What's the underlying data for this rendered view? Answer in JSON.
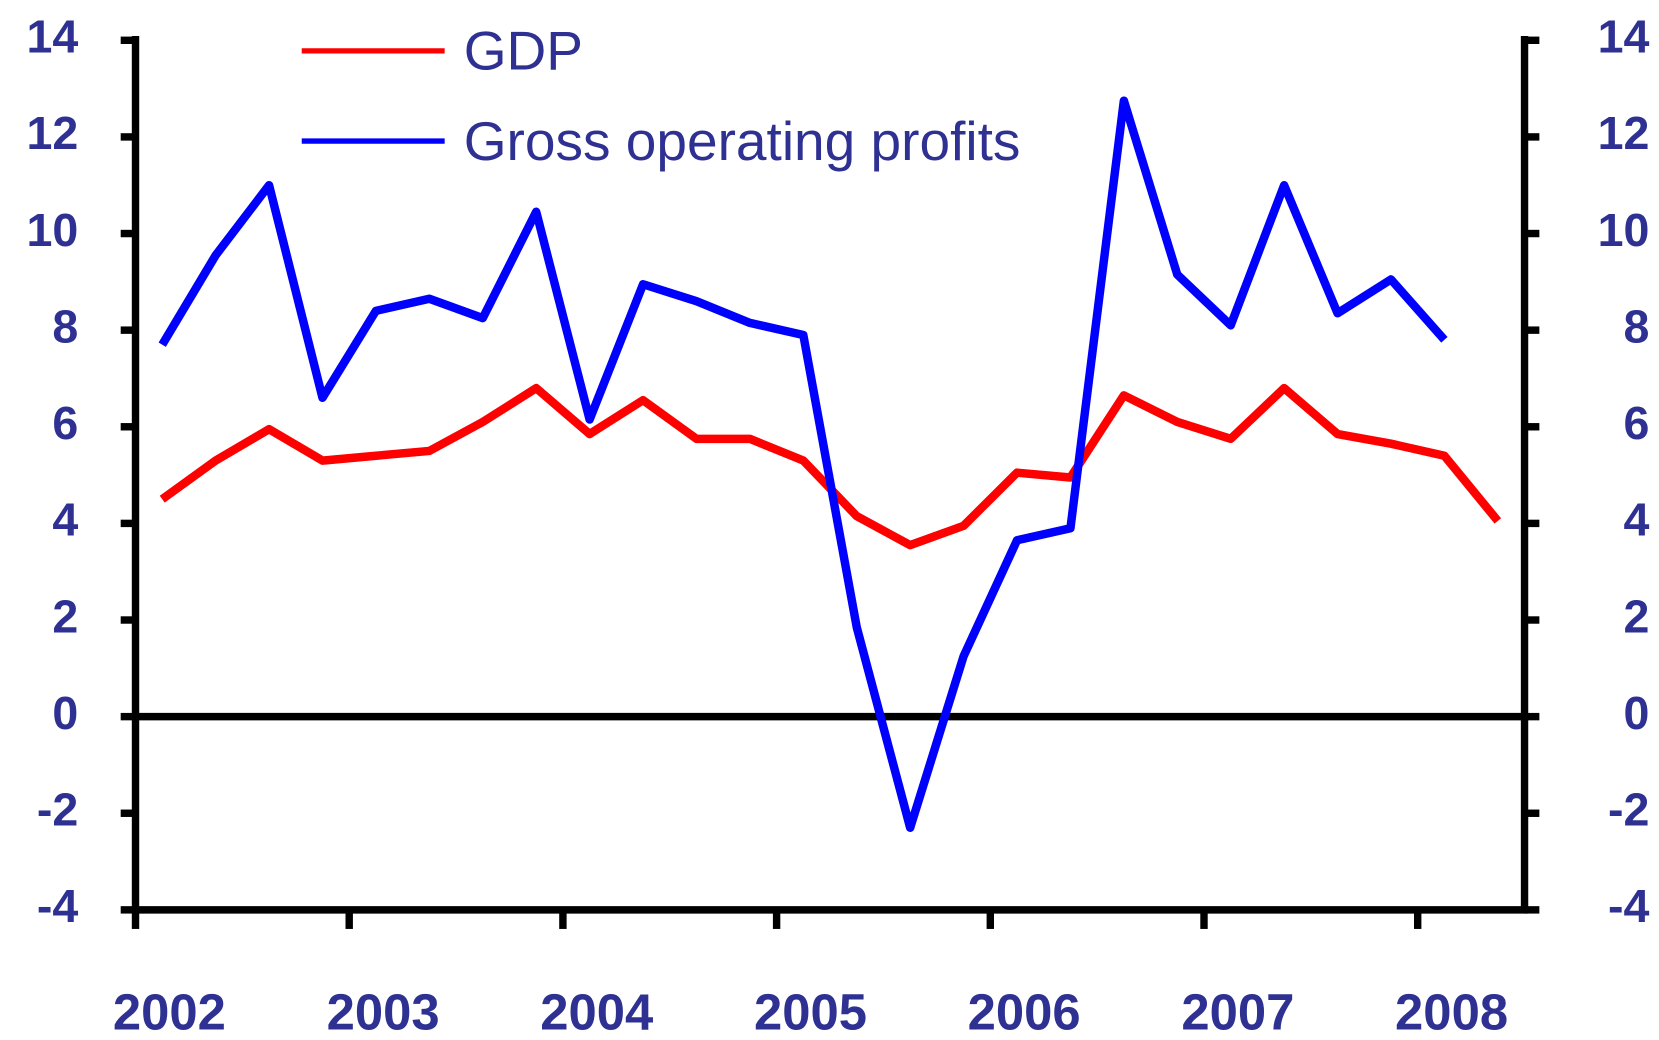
{
  "chart_data": {
    "type": "line",
    "x": [
      2002.125,
      2002.375,
      2002.625,
      2002.875,
      2003.125,
      2003.375,
      2003.625,
      2003.875,
      2004.125,
      2004.375,
      2004.625,
      2004.875,
      2005.125,
      2005.375,
      2005.625,
      2005.875,
      2006.125,
      2006.375,
      2006.625,
      2006.875,
      2007.125,
      2007.375,
      2007.625,
      2007.875,
      2008.125,
      2008.375
    ],
    "series": [
      {
        "name": "GDP",
        "color": "#ff0000",
        "values": [
          4.5,
          5.3,
          5.95,
          5.3,
          5.4,
          5.5,
          6.1,
          6.8,
          5.85,
          6.55,
          5.75,
          5.75,
          5.3,
          4.15,
          3.55,
          3.95,
          5.05,
          4.95,
          6.65,
          6.1,
          5.75,
          6.8,
          5.85,
          5.65,
          5.4,
          4.05
        ]
      },
      {
        "name": "Gross operating profits",
        "color": "#0000ff",
        "values": [
          7.7,
          9.55,
          11.0,
          6.6,
          8.4,
          8.65,
          8.25,
          10.45,
          6.15,
          8.95,
          8.6,
          8.15,
          7.9,
          1.85,
          -2.3,
          1.25,
          3.65,
          3.9,
          12.75,
          9.15,
          8.1,
          11.0,
          8.35,
          9.05,
          7.8,
          null
        ]
      }
    ],
    "xlim": [
      2002,
      2008.5
    ],
    "xticks": [
      2002,
      2003,
      2004,
      2005,
      2006,
      2007,
      2008
    ],
    "ylim": [
      -4,
      14
    ],
    "yticks": [
      -4,
      -2,
      0,
      2,
      4,
      6,
      8,
      10,
      12,
      14
    ],
    "y2lim": [
      -4,
      14
    ],
    "y2ticks": [
      -4,
      -2,
      0,
      2,
      4,
      6,
      8,
      10,
      12,
      14
    ],
    "legend": "upper left"
  }
}
